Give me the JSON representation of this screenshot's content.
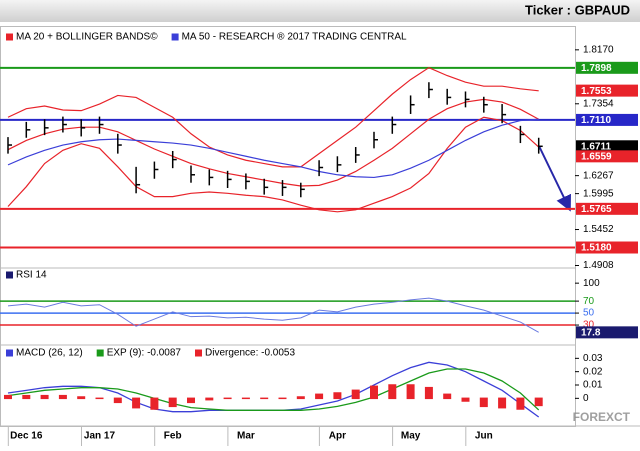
{
  "header": {
    "ticker": "Ticker : GBPAUD"
  },
  "watermark": "FOREXCT",
  "chart_data": [
    {
      "type": "ohlc",
      "ylim": [
        1.487,
        1.847
      ],
      "yticks": [
        {
          "value": 1.817,
          "label": "1.8170"
        },
        1.7354,
        1.6267,
        1.5995,
        1.5452,
        1.4908
      ],
      "ohlc": {
        "high": [
          1.685,
          1.708,
          1.712,
          1.716,
          1.712,
          1.716,
          1.69,
          1.64,
          1.648,
          1.664,
          1.642,
          1.636,
          1.634,
          1.63,
          1.622,
          1.62,
          1.616,
          1.65,
          1.656,
          1.67,
          1.693,
          1.716,
          1.748,
          1.768,
          1.758,
          1.754,
          1.746,
          1.735,
          1.702,
          1.684
        ],
        "low": [
          1.66,
          1.684,
          1.688,
          1.692,
          1.686,
          1.69,
          1.66,
          1.6,
          1.622,
          1.638,
          1.616,
          1.612,
          1.608,
          1.606,
          1.598,
          1.596,
          1.594,
          1.626,
          1.632,
          1.646,
          1.668,
          1.69,
          1.72,
          1.744,
          1.734,
          1.73,
          1.722,
          1.706,
          1.676,
          1.66
        ],
        "close": [
          1.673,
          1.696,
          1.699,
          1.704,
          1.699,
          1.704,
          1.673,
          1.613,
          1.636,
          1.651,
          1.628,
          1.624,
          1.621,
          1.618,
          1.609,
          1.609,
          1.606,
          1.639,
          1.643,
          1.658,
          1.681,
          1.704,
          1.734,
          1.757,
          1.745,
          1.742,
          1.734,
          1.719,
          1.689,
          1.6711
        ]
      },
      "series": [
        {
          "name": "MA 20 + BOLLINGER BANDS©",
          "color": "#e8232a",
          "values": [
            1.666,
            1.68,
            1.69,
            1.697,
            1.7,
            1.7,
            1.693,
            1.68,
            1.667,
            1.656,
            1.645,
            1.637,
            1.63,
            1.625,
            1.62,
            1.615,
            1.611,
            1.612,
            1.62,
            1.633,
            1.65,
            1.668,
            1.69,
            1.712,
            1.728,
            1.738,
            1.742,
            1.738,
            1.727,
            1.712
          ],
          "upper": [
            1.715,
            1.728,
            1.732,
            1.726,
            1.725,
            1.735,
            1.748,
            1.745,
            1.73,
            1.715,
            1.69,
            1.67,
            1.658,
            1.65,
            1.645,
            1.64,
            1.64,
            1.66,
            1.68,
            1.7,
            1.725,
            1.75,
            1.772,
            1.79,
            1.778,
            1.768,
            1.762,
            1.762,
            1.758,
            1.755
          ],
          "lower": [
            1.58,
            1.61,
            1.645,
            1.665,
            1.675,
            1.668,
            1.64,
            1.61,
            1.595,
            1.595,
            1.6,
            1.602,
            1.6,
            1.597,
            1.595,
            1.59,
            1.582,
            1.575,
            1.572,
            1.575,
            1.585,
            1.595,
            1.608,
            1.63,
            1.668,
            1.7,
            1.715,
            1.71,
            1.695,
            1.67
          ]
        },
        {
          "name": "MA 50 - RESEARCH ® 2017 TRADING CENTRAL",
          "color": "#3b3fd8",
          "values": [
            1.643,
            1.655,
            1.665,
            1.673,
            1.678,
            1.681,
            1.682,
            1.68,
            1.678,
            1.676,
            1.673,
            1.668,
            1.662,
            1.656,
            1.65,
            1.645,
            1.64,
            1.633,
            1.628,
            1.625,
            1.624,
            1.628,
            1.638,
            1.65,
            1.665,
            1.68,
            1.693,
            1.703,
            1.71,
            1.712
          ]
        }
      ],
      "levels": [
        {
          "value": 1.7898,
          "color": "#1a9a1a"
        },
        {
          "value": {
            "value": 1.711,
            "label": "1.7110"
          },
          "color": "#2727c8"
        },
        {
          "value": 1.5765,
          "color": "#e8232a"
        },
        {
          "value": {
            "value": 1.518,
            "label": "1.5180"
          },
          "color": "#e8232a"
        }
      ],
      "markers": [
        {
          "value": 1.7553,
          "color": "#e8232a"
        },
        {
          "value": 1.6711,
          "color": "#000000"
        },
        {
          "value": 1.6559,
          "color": "#e8232a"
        }
      ]
    },
    {
      "type": "line",
      "title": "RSI 14",
      "color": "#1a1a6e",
      "ylim": [
        0,
        122
      ],
      "yticks": [
        100
      ],
      "levels": [
        {
          "value": 70,
          "color": "#1a9a1a"
        },
        {
          "value": 50,
          "color": "#3b6ff0"
        },
        {
          "value": 30,
          "color": "#e8232a"
        }
      ],
      "values": [
        62,
        65,
        60,
        68,
        62,
        64,
        48,
        28,
        40,
        52,
        44,
        45,
        42,
        43,
        40,
        38,
        42,
        55,
        52,
        60,
        65,
        68,
        72,
        75,
        70,
        62,
        55,
        45,
        35,
        17.8
      ]
    },
    {
      "type": "macd",
      "ylim": [
        -0.02,
        0.0385
      ],
      "yticks": [
        0.03,
        0.02,
        0.01,
        0
      ],
      "categories": [
        null,
        "Dec 16",
        null,
        null,
        null,
        "Jan 17",
        null,
        null,
        null,
        "Feb",
        null,
        null,
        null,
        "Mar",
        null,
        null,
        null,
        null,
        "Apr",
        null,
        null,
        null,
        "May",
        null,
        null,
        null,
        "Jun",
        null,
        null,
        null
      ],
      "series": [
        {
          "name": "MACD (26, 12)",
          "color": "#3b3fd8",
          "kind": "line",
          "values": [
            0.004,
            0.006,
            0.008,
            0.009,
            0.009,
            0.008,
            0.004,
            -0.003,
            -0.008,
            -0.01,
            -0.01,
            -0.009,
            -0.009,
            -0.009,
            -0.009,
            -0.009,
            -0.008,
            -0.005,
            -0.002,
            0.003,
            0.01,
            0.017,
            0.023,
            0.027,
            0.025,
            0.02,
            0.013,
            0.006,
            -0.004,
            -0.014
          ]
        },
        {
          "name": "EXP (9): -0.0087",
          "color": "#1a9a1a",
          "kind": "line",
          "values": [
            0.002,
            0.004,
            0.006,
            0.007,
            0.008,
            0.008,
            0.007,
            0.004,
            0.0,
            -0.004,
            -0.007,
            -0.008,
            -0.009,
            -0.009,
            -0.009,
            -0.009,
            -0.009,
            -0.008,
            -0.006,
            -0.003,
            0.001,
            0.007,
            0.013,
            0.019,
            0.022,
            0.022,
            0.019,
            0.013,
            0.004,
            -0.0087
          ]
        },
        {
          "name": "Divergence: -0.0053",
          "color": "#e8232a",
          "kind": "bar",
          "values": [
            0.002,
            0.002,
            0.002,
            0.002,
            0.001,
            0,
            -0.003,
            -0.007,
            -0.008,
            -0.006,
            -0.003,
            -0.001,
            0,
            0,
            0,
            0,
            0.001,
            0.003,
            0.004,
            0.006,
            0.009,
            0.01,
            0.01,
            0.008,
            0.003,
            -0.002,
            -0.006,
            -0.007,
            -0.008,
            -0.0053
          ]
        }
      ]
    }
  ]
}
